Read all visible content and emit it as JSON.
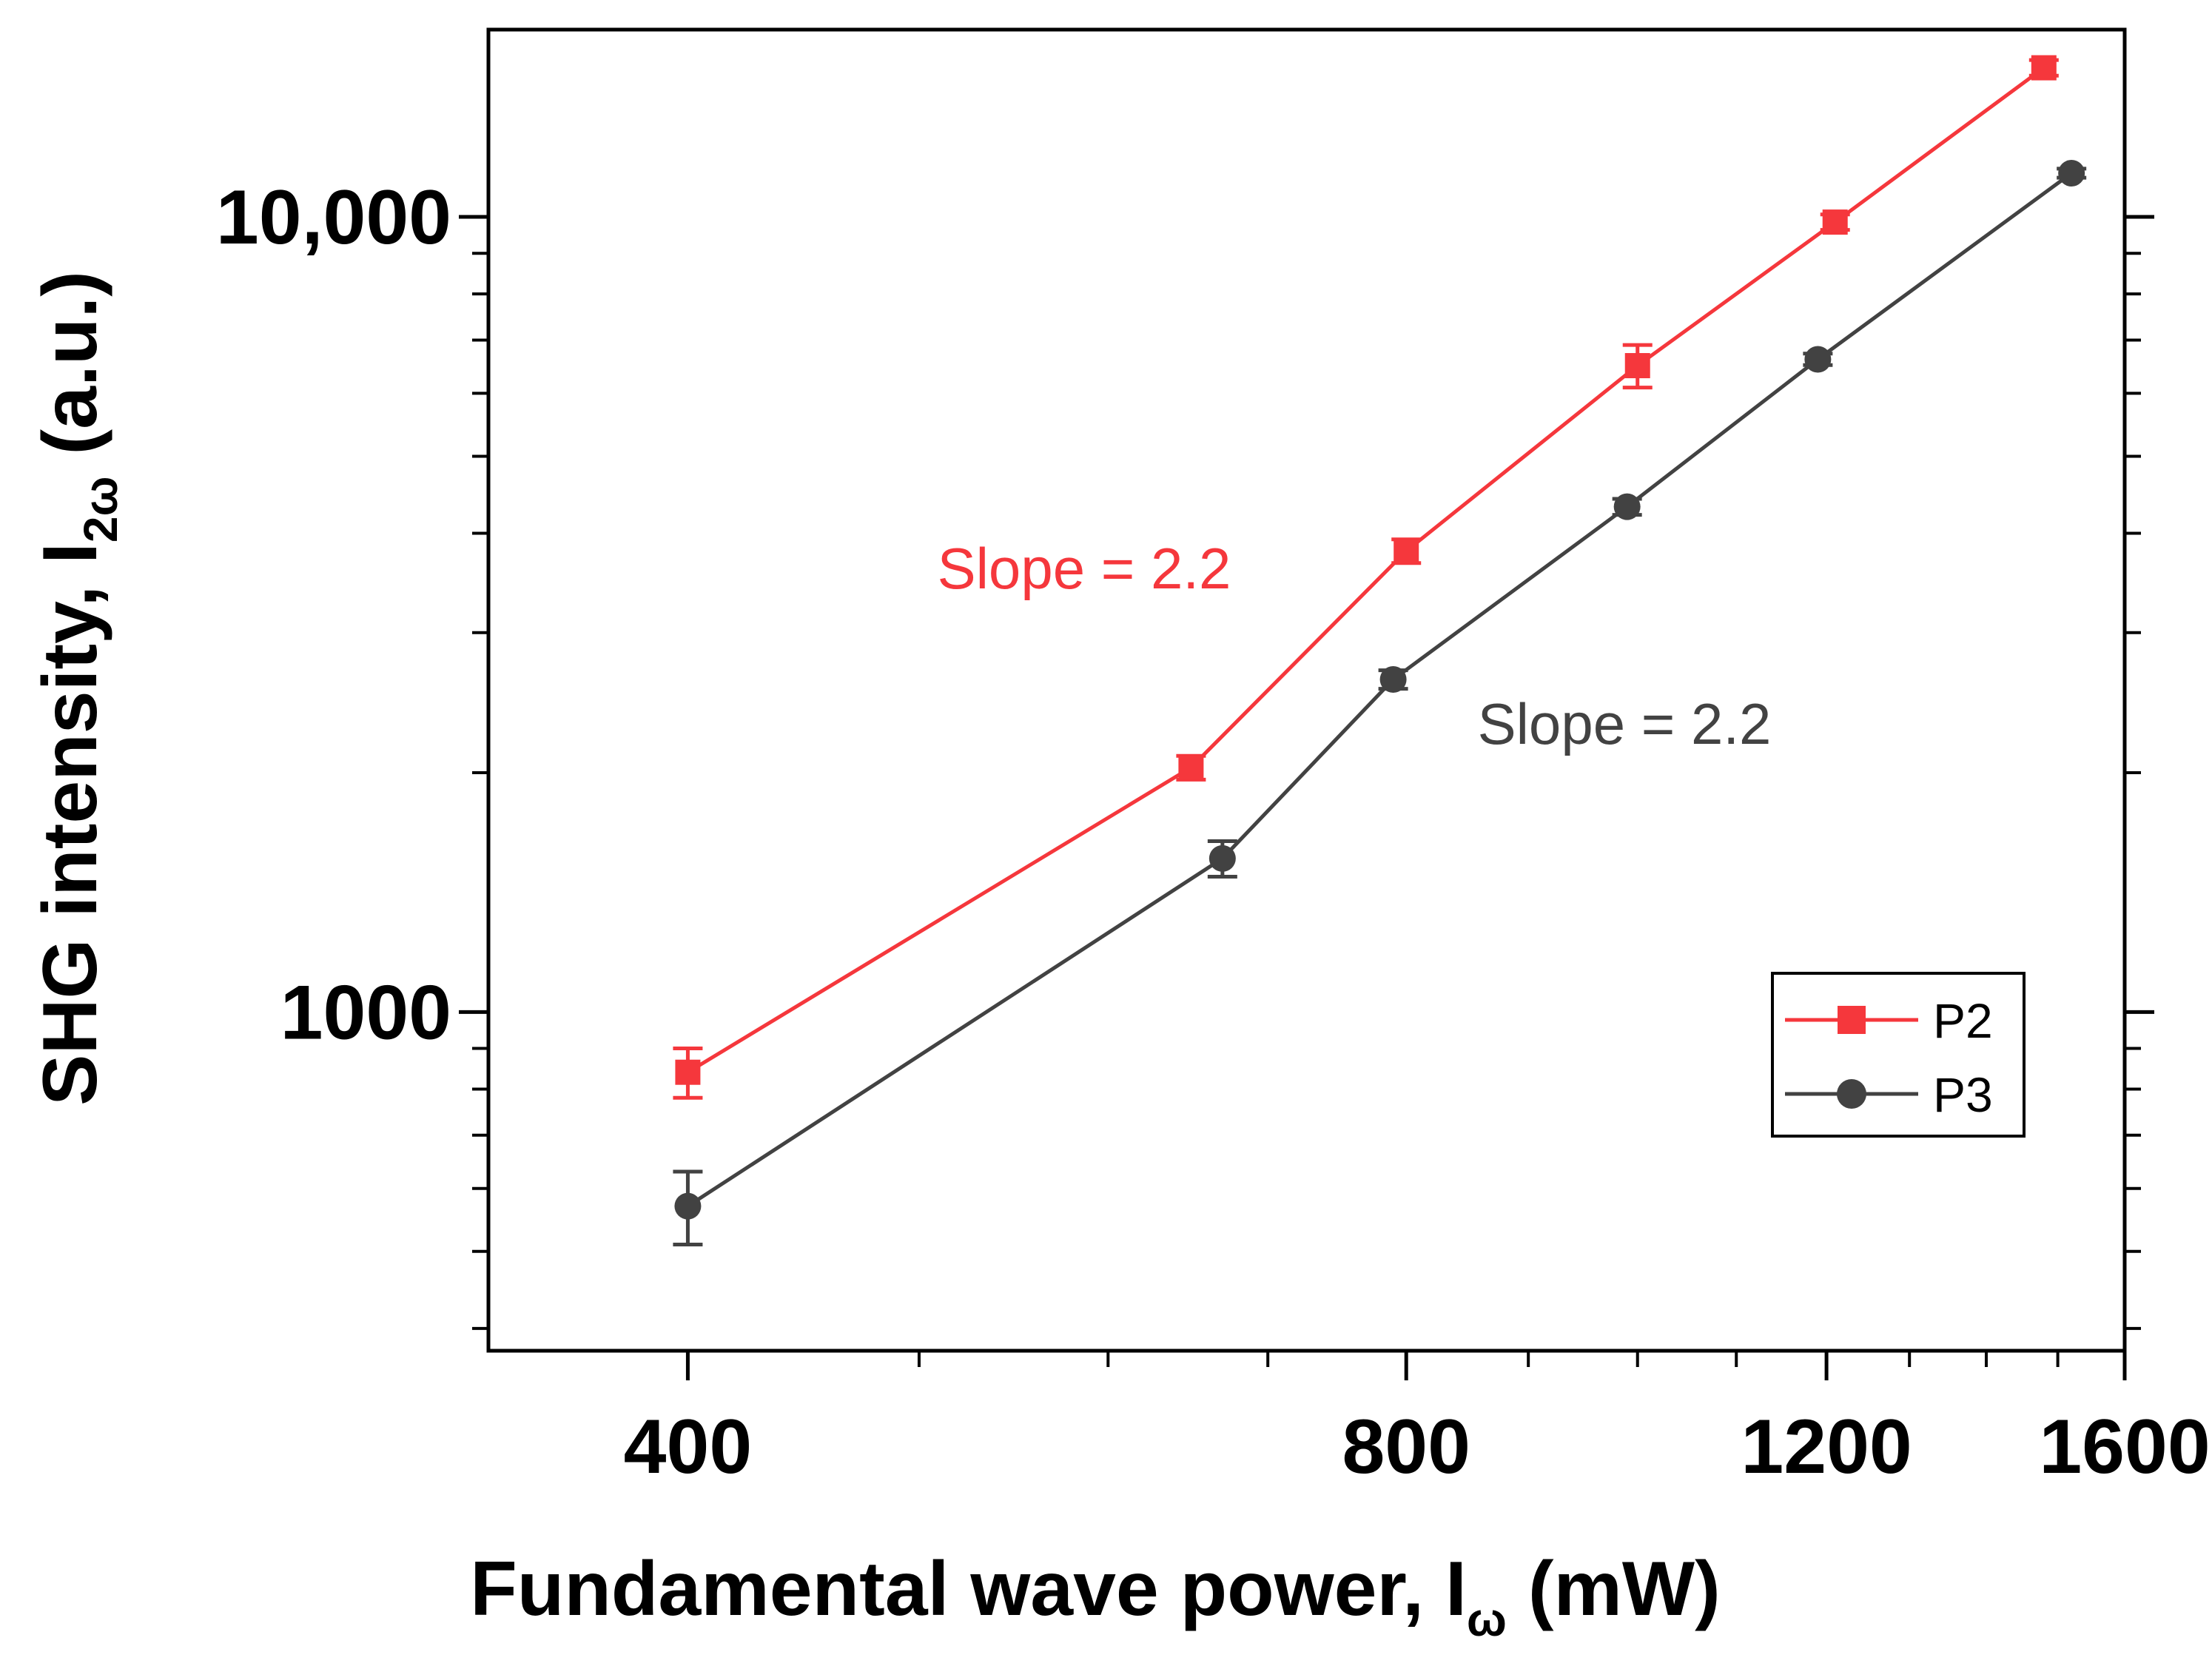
{
  "chart_data": {
    "type": "line",
    "x_scale": "log",
    "y_scale": "log",
    "xlim": [
      330,
      1600
    ],
    "ylim": [
      375,
      17200
    ],
    "x_ticks": [
      {
        "value": 400,
        "label": "400"
      },
      {
        "value": 800,
        "label": "800"
      },
      {
        "value": 1200,
        "label": "1200"
      },
      {
        "value": 1600,
        "label": "1600"
      }
    ],
    "y_ticks": [
      {
        "value": 1000,
        "label": "1000"
      },
      {
        "value": 10000,
        "label": "10,000"
      }
    ],
    "xlabel": {
      "main": "Fundamental wave power, I",
      "sub": "ω",
      "unit": " (mW)"
    },
    "ylabel": {
      "main": "SHG intensity, I",
      "sub": "2ω",
      "unit": " (a.u.)"
    },
    "legend_position": "bottom-right",
    "series": [
      {
        "name": "P2",
        "color": "#f5373c",
        "marker": "square",
        "x": [
          400,
          650,
          800,
          1000,
          1210,
          1480
        ],
        "y": [
          840,
          2030,
          3800,
          6500,
          9850,
          15400
        ],
        "err": [
          60,
          70,
          130,
          400,
          220,
          350
        ],
        "slope_label": "Slope = 2.2"
      },
      {
        "name": "P3",
        "color": "#424242",
        "marker": "circle",
        "x": [
          400,
          670,
          790,
          990,
          1190,
          1520
        ],
        "y": [
          570,
          1560,
          2620,
          4320,
          6620,
          11350
        ],
        "err": [
          60,
          80,
          70,
          100,
          110,
          150
        ],
        "slope_label": "Slope = 2.2"
      }
    ]
  }
}
